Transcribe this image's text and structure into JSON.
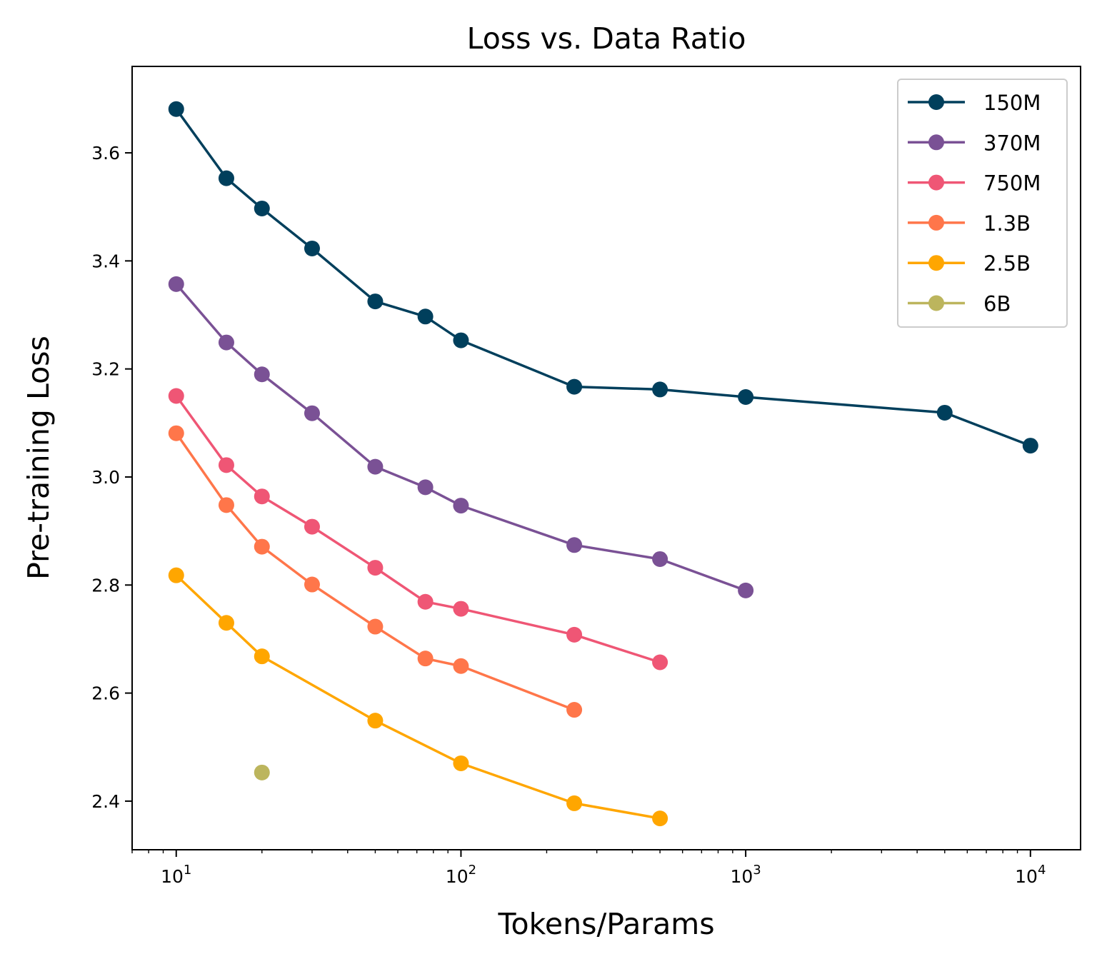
{
  "chart_data": {
    "type": "line",
    "title": "Loss vs. Data Ratio",
    "xlabel": "Tokens/Params",
    "ylabel": "Pre-training Loss",
    "xscale": "log",
    "xlim": [
      7,
      15000
    ],
    "ylim": [
      2.31,
      3.76
    ],
    "x_ticks": [
      {
        "value": 10,
        "base": "10",
        "exp": "1"
      },
      {
        "value": 100,
        "base": "10",
        "exp": "2"
      },
      {
        "value": 1000,
        "base": "10",
        "exp": "3"
      },
      {
        "value": 10000,
        "base": "10",
        "exp": "4"
      }
    ],
    "y_ticks": [
      {
        "value": 2.4,
        "label": "2.4"
      },
      {
        "value": 2.6,
        "label": "2.6"
      },
      {
        "value": 2.8,
        "label": "2.8"
      },
      {
        "value": 3.0,
        "label": "3.0"
      },
      {
        "value": 3.2,
        "label": "3.2"
      },
      {
        "value": 3.4,
        "label": "3.4"
      },
      {
        "value": 3.6,
        "label": "3.6"
      }
    ],
    "legend_position": "top-right",
    "grid": false,
    "series": [
      {
        "name": "150M",
        "color": "#003f5c",
        "x": [
          10,
          15,
          20,
          30,
          50,
          75,
          100,
          250,
          500,
          1000,
          5000,
          10000
        ],
        "y": [
          3.681,
          3.553,
          3.497,
          3.423,
          3.325,
          3.297,
          3.253,
          3.167,
          3.162,
          3.148,
          3.119,
          3.058
        ]
      },
      {
        "name": "370M",
        "color": "#7a5195",
        "x": [
          10,
          15,
          20,
          30,
          50,
          75,
          100,
          250,
          500,
          1000
        ],
        "y": [
          3.357,
          3.249,
          3.19,
          3.118,
          3.019,
          2.981,
          2.947,
          2.874,
          2.848,
          2.79
        ]
      },
      {
        "name": "750M",
        "color": "#ef5675",
        "x": [
          10,
          15,
          20,
          30,
          50,
          75,
          100,
          250,
          500
        ],
        "y": [
          3.15,
          3.022,
          2.964,
          2.908,
          2.832,
          2.769,
          2.756,
          2.708,
          2.657
        ]
      },
      {
        "name": "1.3B",
        "color": "#ff764a",
        "x": [
          10,
          15,
          20,
          30,
          50,
          75,
          100,
          250
        ],
        "y": [
          3.081,
          2.948,
          2.871,
          2.801,
          2.723,
          2.664,
          2.65,
          2.569
        ]
      },
      {
        "name": "2.5B",
        "color": "#ffa600",
        "x": [
          10,
          15,
          20,
          50,
          100,
          250,
          500
        ],
        "y": [
          2.818,
          2.73,
          2.668,
          2.549,
          2.47,
          2.396,
          2.368
        ]
      },
      {
        "name": "6B",
        "color": "#bcb55d",
        "x": [
          20
        ],
        "y": [
          2.453
        ]
      }
    ]
  }
}
